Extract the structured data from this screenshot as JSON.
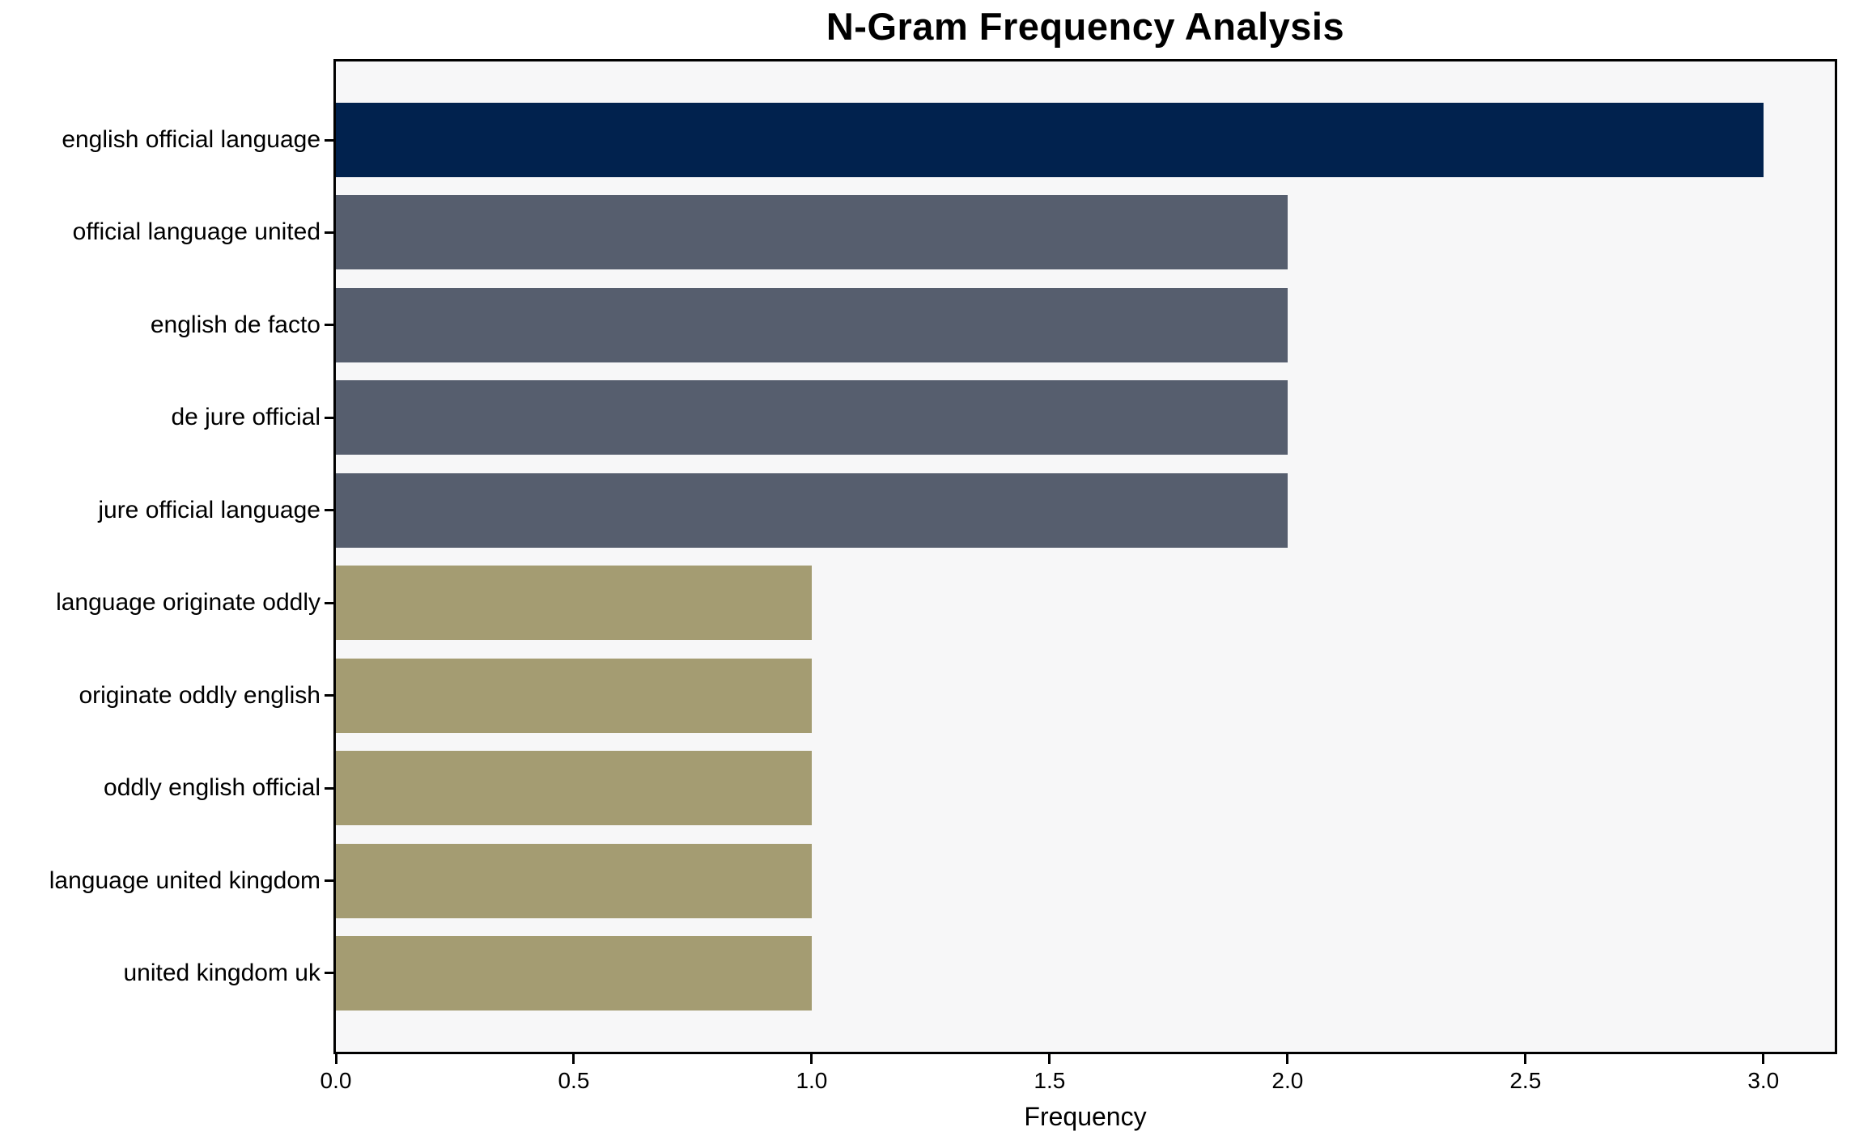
{
  "chart_data": {
    "type": "bar",
    "orientation": "horizontal",
    "title": "N-Gram Frequency Analysis",
    "xlabel": "Frequency",
    "ylabel": "",
    "categories": [
      "english official language",
      "official language united",
      "english de facto",
      "de jure official",
      "jure official language",
      "language originate oddly",
      "originate oddly english",
      "oddly english official",
      "language united kingdom",
      "united kingdom uk"
    ],
    "values": [
      3,
      2,
      2,
      2,
      2,
      1,
      1,
      1,
      1,
      1
    ],
    "bar_colors": [
      "#01224e",
      "#565e6e",
      "#565e6e",
      "#565e6e",
      "#565e6e",
      "#a49c72",
      "#a49c72",
      "#a49c72",
      "#a49c72",
      "#a49c72"
    ],
    "x_ticks": [
      0,
      0.5,
      1,
      1.5,
      2,
      2.5,
      3
    ],
    "x_tick_labels": [
      "0.0",
      "0.5",
      "1.0",
      "1.5",
      "2.0",
      "2.5",
      "3.0"
    ],
    "xlim": [
      0,
      3.15
    ],
    "grid": false,
    "legend": null,
    "plot_background": "#f7f7f8",
    "figure_background": "#ffffff",
    "spine_color": "#000000"
  }
}
